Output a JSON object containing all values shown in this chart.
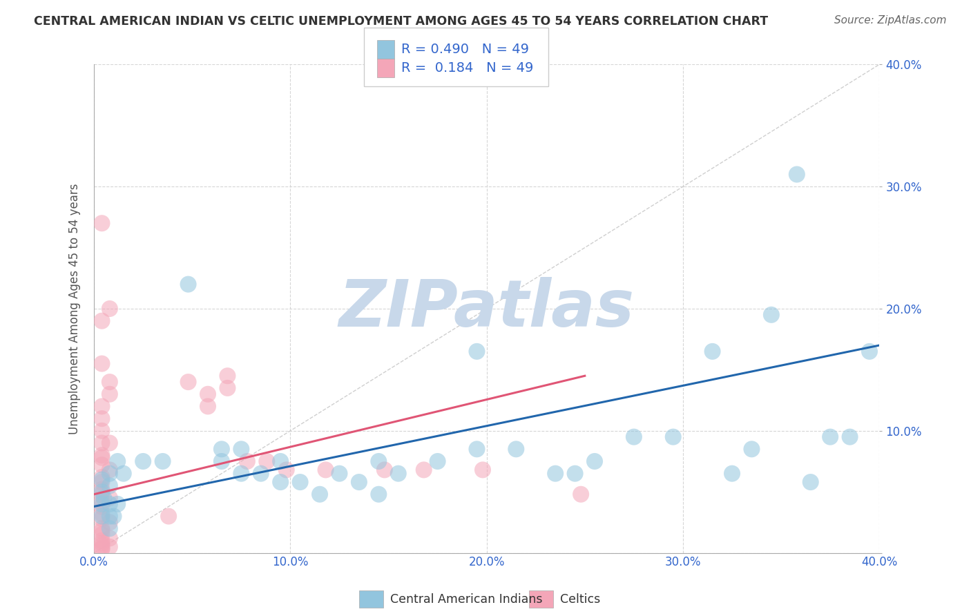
{
  "title": "CENTRAL AMERICAN INDIAN VS CELTIC UNEMPLOYMENT AMONG AGES 45 TO 54 YEARS CORRELATION CHART",
  "source": "Source: ZipAtlas.com",
  "ylabel": "Unemployment Among Ages 45 to 54 years",
  "xlim": [
    0.0,
    0.4
  ],
  "ylim": [
    0.0,
    0.4
  ],
  "xticks": [
    0.0,
    0.1,
    0.2,
    0.3,
    0.4
  ],
  "yticks": [
    0.0,
    0.1,
    0.2,
    0.3,
    0.4
  ],
  "xticklabels": [
    "0.0%",
    "10.0%",
    "20.0%",
    "30.0%",
    "40.0%"
  ],
  "yticklabels_right": [
    "",
    "10.0%",
    "20.0%",
    "30.0%",
    "40.0%"
  ],
  "legend_R1": "0.490",
  "legend_N1": "49",
  "legend_R2": "0.184",
  "legend_N2": "49",
  "blue_color": "#92c5de",
  "pink_color": "#f4a6b8",
  "blue_trend_color": "#2166ac",
  "pink_trend_color": "#e05575",
  "blue_scatter": [
    [
      0.005,
      0.045
    ],
    [
      0.008,
      0.03
    ],
    [
      0.012,
      0.04
    ],
    [
      0.008,
      0.02
    ],
    [
      0.01,
      0.03
    ],
    [
      0.008,
      0.055
    ],
    [
      0.004,
      0.04
    ],
    [
      0.004,
      0.06
    ],
    [
      0.008,
      0.065
    ],
    [
      0.004,
      0.05
    ],
    [
      0.015,
      0.065
    ],
    [
      0.004,
      0.03
    ],
    [
      0.008,
      0.04
    ],
    [
      0.012,
      0.075
    ],
    [
      0.025,
      0.075
    ],
    [
      0.048,
      0.22
    ],
    [
      0.035,
      0.075
    ],
    [
      0.065,
      0.075
    ],
    [
      0.065,
      0.085
    ],
    [
      0.075,
      0.085
    ],
    [
      0.085,
      0.065
    ],
    [
      0.095,
      0.075
    ],
    [
      0.105,
      0.058
    ],
    [
      0.115,
      0.048
    ],
    [
      0.125,
      0.065
    ],
    [
      0.135,
      0.058
    ],
    [
      0.145,
      0.075
    ],
    [
      0.155,
      0.065
    ],
    [
      0.175,
      0.075
    ],
    [
      0.195,
      0.085
    ],
    [
      0.215,
      0.085
    ],
    [
      0.235,
      0.065
    ],
    [
      0.245,
      0.065
    ],
    [
      0.255,
      0.075
    ],
    [
      0.075,
      0.065
    ],
    [
      0.095,
      0.058
    ],
    [
      0.145,
      0.048
    ],
    [
      0.195,
      0.165
    ],
    [
      0.275,
      0.095
    ],
    [
      0.295,
      0.095
    ],
    [
      0.315,
      0.165
    ],
    [
      0.325,
      0.065
    ],
    [
      0.335,
      0.085
    ],
    [
      0.345,
      0.195
    ],
    [
      0.358,
      0.31
    ],
    [
      0.375,
      0.095
    ],
    [
      0.385,
      0.095
    ],
    [
      0.365,
      0.058
    ],
    [
      0.395,
      0.165
    ]
  ],
  "pink_scatter": [
    [
      0.004,
      0.27
    ],
    [
      0.008,
      0.2
    ],
    [
      0.004,
      0.19
    ],
    [
      0.004,
      0.155
    ],
    [
      0.008,
      0.14
    ],
    [
      0.008,
      0.13
    ],
    [
      0.004,
      0.12
    ],
    [
      0.004,
      0.11
    ],
    [
      0.004,
      0.1
    ],
    [
      0.004,
      0.09
    ],
    [
      0.008,
      0.09
    ],
    [
      0.004,
      0.08
    ],
    [
      0.004,
      0.078
    ],
    [
      0.004,
      0.072
    ],
    [
      0.008,
      0.068
    ],
    [
      0.004,
      0.062
    ],
    [
      0.004,
      0.058
    ],
    [
      0.004,
      0.052
    ],
    [
      0.004,
      0.048
    ],
    [
      0.008,
      0.045
    ],
    [
      0.004,
      0.042
    ],
    [
      0.004,
      0.038
    ],
    [
      0.004,
      0.032
    ],
    [
      0.004,
      0.028
    ],
    [
      0.008,
      0.025
    ],
    [
      0.004,
      0.02
    ],
    [
      0.004,
      0.018
    ],
    [
      0.004,
      0.015
    ],
    [
      0.008,
      0.012
    ],
    [
      0.004,
      0.01
    ],
    [
      0.004,
      0.008
    ],
    [
      0.004,
      0.006
    ],
    [
      0.008,
      0.005
    ],
    [
      0.004,
      0.004
    ],
    [
      0.004,
      0.003
    ],
    [
      0.048,
      0.14
    ],
    [
      0.058,
      0.13
    ],
    [
      0.058,
      0.12
    ],
    [
      0.068,
      0.135
    ],
    [
      0.068,
      0.145
    ],
    [
      0.078,
      0.075
    ],
    [
      0.088,
      0.075
    ],
    [
      0.098,
      0.068
    ],
    [
      0.118,
      0.068
    ],
    [
      0.038,
      0.03
    ],
    [
      0.148,
      0.068
    ],
    [
      0.168,
      0.068
    ],
    [
      0.198,
      0.068
    ],
    [
      0.248,
      0.048
    ]
  ],
  "blue_line_x": [
    0.0,
    0.4
  ],
  "blue_line_y": [
    0.038,
    0.17
  ],
  "pink_line_x": [
    0.0,
    0.25
  ],
  "pink_line_y": [
    0.048,
    0.145
  ],
  "ref_line_x": [
    0.0,
    0.4
  ],
  "ref_line_y": [
    0.0,
    0.4
  ],
  "watermark": "ZIPatlas",
  "watermark_color": "#c8d8ea",
  "background_color": "#ffffff",
  "grid_color": "#cccccc",
  "title_color": "#333333",
  "axis_label_color": "#555555",
  "tick_color": "#3366cc",
  "legend_text_color": "#3366cc",
  "bottom_legend_text_color": "#333333"
}
